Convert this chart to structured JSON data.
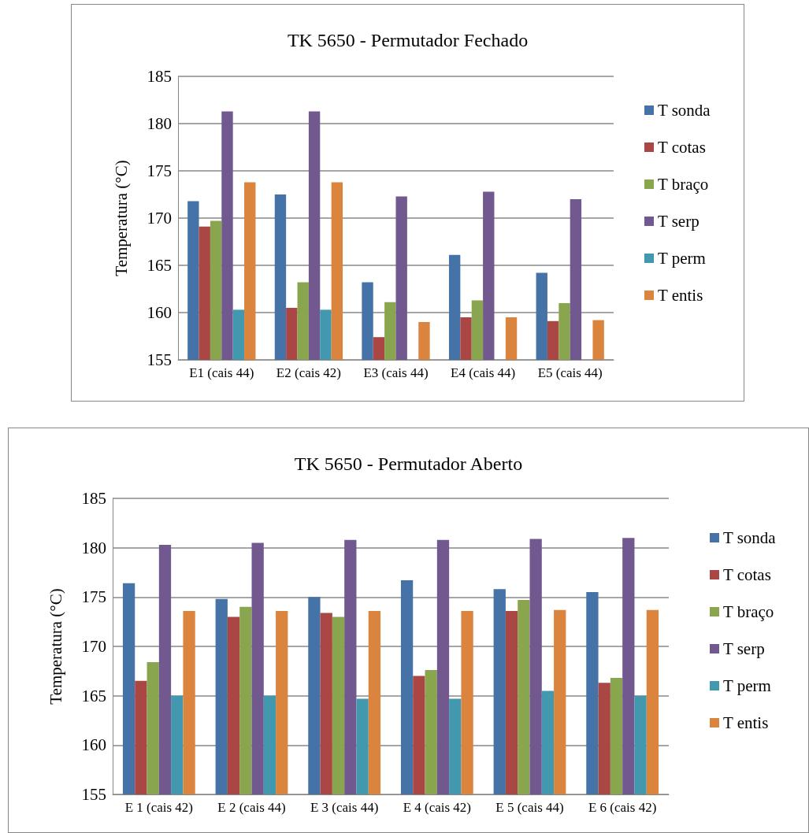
{
  "chart_data": [
    {
      "type": "bar",
      "title": "TK 5650 - Permutador Fechado",
      "ylabel": "Temperatura (°C)",
      "categories": [
        "E1 (cais 44)",
        "E2 (cais 42)",
        "E3 (cais 44)",
        "E4 (cais 44)",
        "E5 (cais 44)"
      ],
      "ylim": [
        155,
        185
      ],
      "yticks": [
        155,
        160,
        165,
        170,
        175,
        180,
        185
      ],
      "grid": "y",
      "legend": "right",
      "series": [
        {
          "name": "T sonda",
          "color": "#4572a7",
          "values": [
            171.8,
            172.5,
            163.2,
            166.1,
            164.2
          ]
        },
        {
          "name": "T cotas",
          "color": "#aa4643",
          "values": [
            169.1,
            160.5,
            157.4,
            159.5,
            159.1
          ]
        },
        {
          "name": "T braço",
          "color": "#89a54e",
          "values": [
            169.7,
            163.2,
            161.1,
            161.3,
            161.0
          ]
        },
        {
          "name": "T serp",
          "color": "#71588f",
          "values": [
            181.3,
            181.3,
            172.3,
            172.8,
            172.0
          ]
        },
        {
          "name": "T perm",
          "color": "#4198af",
          "values": [
            160.3,
            160.3,
            null,
            null,
            null
          ]
        },
        {
          "name": "T entis",
          "color": "#db843d",
          "values": [
            173.8,
            173.8,
            159.0,
            159.5,
            159.2
          ]
        }
      ]
    },
    {
      "type": "bar",
      "title": "TK 5650 - Permutador Aberto",
      "ylabel": "Temperatura (°C)",
      "categories": [
        "E 1 (cais 42)",
        "E 2 (cais 44)",
        "E 3 (cais 44)",
        "E 4 (cais 42)",
        "E 5 (cais 44)",
        "E 6 (cais 42)"
      ],
      "ylim": [
        155,
        185
      ],
      "yticks": [
        155,
        160,
        165,
        170,
        175,
        180,
        185
      ],
      "grid": "y",
      "legend": "right",
      "series": [
        {
          "name": "T sonda",
          "color": "#4572a7",
          "values": [
            176.4,
            174.8,
            175.0,
            176.7,
            175.8,
            175.5
          ]
        },
        {
          "name": "T cotas",
          "color": "#aa4643",
          "values": [
            166.5,
            173.0,
            173.4,
            167.0,
            173.6,
            166.3
          ]
        },
        {
          "name": "T braço",
          "color": "#89a54e",
          "values": [
            168.4,
            174.0,
            173.0,
            167.6,
            174.7,
            166.8
          ]
        },
        {
          "name": "T serp",
          "color": "#71588f",
          "values": [
            180.3,
            180.5,
            180.8,
            180.8,
            180.9,
            181.0
          ]
        },
        {
          "name": "T perm",
          "color": "#4198af",
          "values": [
            165.0,
            165.0,
            164.7,
            164.7,
            165.5,
            165.0
          ]
        },
        {
          "name": "T entis",
          "color": "#db843d",
          "values": [
            173.6,
            173.6,
            173.6,
            173.6,
            173.7,
            173.7
          ]
        }
      ]
    }
  ]
}
